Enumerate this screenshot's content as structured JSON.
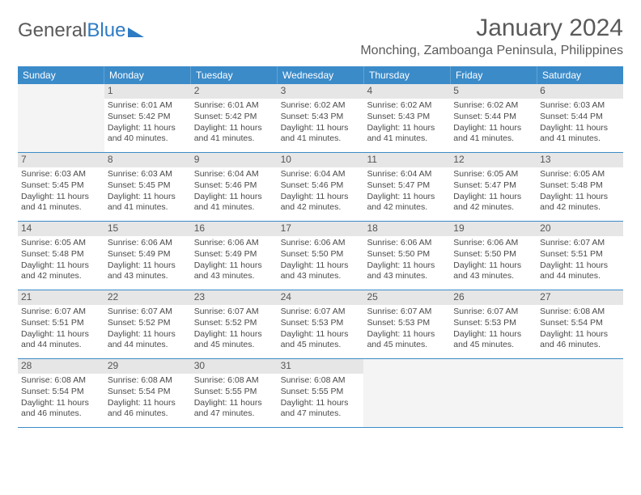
{
  "brand": {
    "part1": "General",
    "part2": "Blue"
  },
  "title": "January 2024",
  "location": "Monching, Zamboanga Peninsula, Philippines",
  "colors": {
    "header_bg": "#3b8bc9",
    "header_text": "#ffffff",
    "daynum_bg": "#e6e6e6",
    "text": "#4a4a4a",
    "divider": "#3b8bc9"
  },
  "dayHeaders": [
    "Sunday",
    "Monday",
    "Tuesday",
    "Wednesday",
    "Thursday",
    "Friday",
    "Saturday"
  ],
  "weeks": [
    [
      null,
      {
        "n": "1",
        "sr": "6:01 AM",
        "ss": "5:42 PM",
        "dl": "11 hours and 40 minutes."
      },
      {
        "n": "2",
        "sr": "6:01 AM",
        "ss": "5:42 PM",
        "dl": "11 hours and 41 minutes."
      },
      {
        "n": "3",
        "sr": "6:02 AM",
        "ss": "5:43 PM",
        "dl": "11 hours and 41 minutes."
      },
      {
        "n": "4",
        "sr": "6:02 AM",
        "ss": "5:43 PM",
        "dl": "11 hours and 41 minutes."
      },
      {
        "n": "5",
        "sr": "6:02 AM",
        "ss": "5:44 PM",
        "dl": "11 hours and 41 minutes."
      },
      {
        "n": "6",
        "sr": "6:03 AM",
        "ss": "5:44 PM",
        "dl": "11 hours and 41 minutes."
      }
    ],
    [
      {
        "n": "7",
        "sr": "6:03 AM",
        "ss": "5:45 PM",
        "dl": "11 hours and 41 minutes."
      },
      {
        "n": "8",
        "sr": "6:03 AM",
        "ss": "5:45 PM",
        "dl": "11 hours and 41 minutes."
      },
      {
        "n": "9",
        "sr": "6:04 AM",
        "ss": "5:46 PM",
        "dl": "11 hours and 41 minutes."
      },
      {
        "n": "10",
        "sr": "6:04 AM",
        "ss": "5:46 PM",
        "dl": "11 hours and 42 minutes."
      },
      {
        "n": "11",
        "sr": "6:04 AM",
        "ss": "5:47 PM",
        "dl": "11 hours and 42 minutes."
      },
      {
        "n": "12",
        "sr": "6:05 AM",
        "ss": "5:47 PM",
        "dl": "11 hours and 42 minutes."
      },
      {
        "n": "13",
        "sr": "6:05 AM",
        "ss": "5:48 PM",
        "dl": "11 hours and 42 minutes."
      }
    ],
    [
      {
        "n": "14",
        "sr": "6:05 AM",
        "ss": "5:48 PM",
        "dl": "11 hours and 42 minutes."
      },
      {
        "n": "15",
        "sr": "6:06 AM",
        "ss": "5:49 PM",
        "dl": "11 hours and 43 minutes."
      },
      {
        "n": "16",
        "sr": "6:06 AM",
        "ss": "5:49 PM",
        "dl": "11 hours and 43 minutes."
      },
      {
        "n": "17",
        "sr": "6:06 AM",
        "ss": "5:50 PM",
        "dl": "11 hours and 43 minutes."
      },
      {
        "n": "18",
        "sr": "6:06 AM",
        "ss": "5:50 PM",
        "dl": "11 hours and 43 minutes."
      },
      {
        "n": "19",
        "sr": "6:06 AM",
        "ss": "5:50 PM",
        "dl": "11 hours and 43 minutes."
      },
      {
        "n": "20",
        "sr": "6:07 AM",
        "ss": "5:51 PM",
        "dl": "11 hours and 44 minutes."
      }
    ],
    [
      {
        "n": "21",
        "sr": "6:07 AM",
        "ss": "5:51 PM",
        "dl": "11 hours and 44 minutes."
      },
      {
        "n": "22",
        "sr": "6:07 AM",
        "ss": "5:52 PM",
        "dl": "11 hours and 44 minutes."
      },
      {
        "n": "23",
        "sr": "6:07 AM",
        "ss": "5:52 PM",
        "dl": "11 hours and 45 minutes."
      },
      {
        "n": "24",
        "sr": "6:07 AM",
        "ss": "5:53 PM",
        "dl": "11 hours and 45 minutes."
      },
      {
        "n": "25",
        "sr": "6:07 AM",
        "ss": "5:53 PM",
        "dl": "11 hours and 45 minutes."
      },
      {
        "n": "26",
        "sr": "6:07 AM",
        "ss": "5:53 PM",
        "dl": "11 hours and 45 minutes."
      },
      {
        "n": "27",
        "sr": "6:08 AM",
        "ss": "5:54 PM",
        "dl": "11 hours and 46 minutes."
      }
    ],
    [
      {
        "n": "28",
        "sr": "6:08 AM",
        "ss": "5:54 PM",
        "dl": "11 hours and 46 minutes."
      },
      {
        "n": "29",
        "sr": "6:08 AM",
        "ss": "5:54 PM",
        "dl": "11 hours and 46 minutes."
      },
      {
        "n": "30",
        "sr": "6:08 AM",
        "ss": "5:55 PM",
        "dl": "11 hours and 47 minutes."
      },
      {
        "n": "31",
        "sr": "6:08 AM",
        "ss": "5:55 PM",
        "dl": "11 hours and 47 minutes."
      },
      null,
      null,
      null
    ]
  ],
  "labels": {
    "sunrise": "Sunrise:",
    "sunset": "Sunset:",
    "daylight": "Daylight:"
  }
}
